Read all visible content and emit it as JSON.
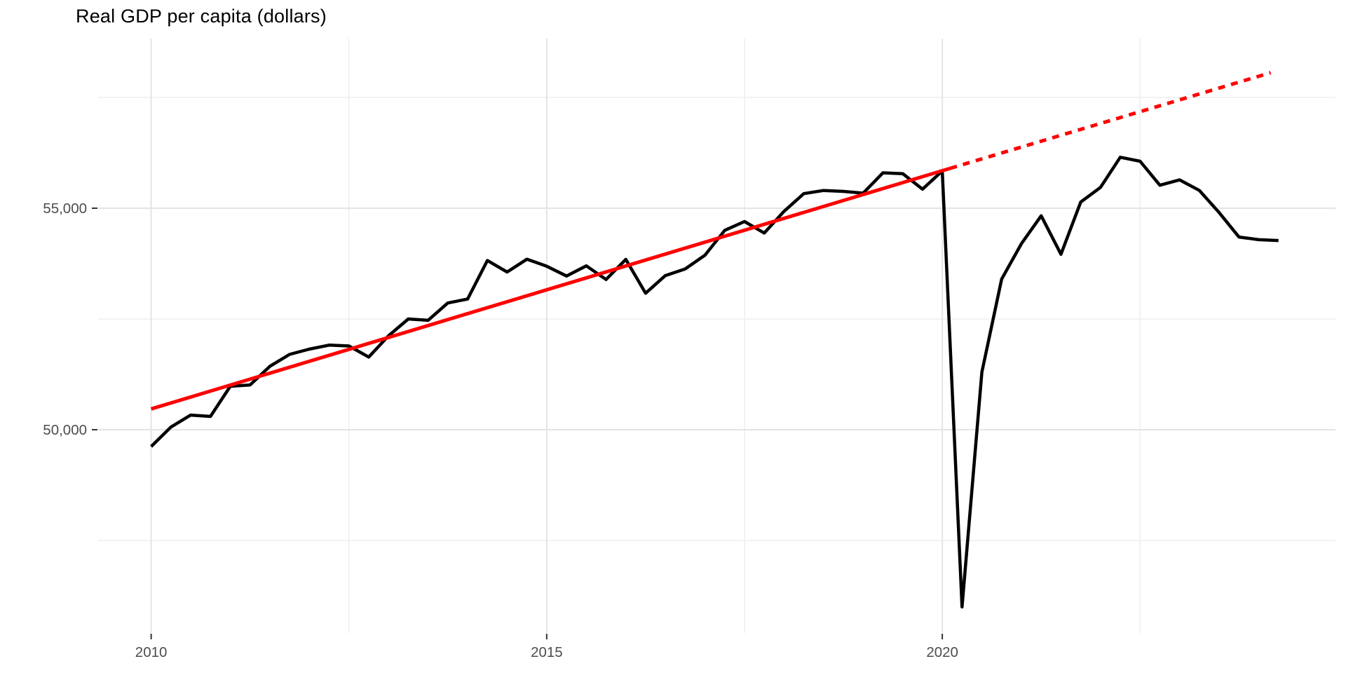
{
  "chart_data": {
    "type": "line",
    "title": "Real GDP per capita (dollars)",
    "xlabel": "",
    "ylabel": "",
    "grid": "on",
    "legend": "none",
    "x_domain": [
      2009.33,
      2024.97
    ],
    "y_domain": [
      45410,
      58830
    ],
    "x_ticks": [
      {
        "value": 2010,
        "label": "2010"
      },
      {
        "value": 2015,
        "label": "2015"
      },
      {
        "value": 2020,
        "label": "2020"
      }
    ],
    "x_minor": [
      2012.5,
      2017.5,
      2022.5
    ],
    "y_ticks": [
      {
        "value": 50000,
        "label": "50,000"
      },
      {
        "value": 55000,
        "label": "55,000"
      }
    ],
    "y_minor": [
      47500,
      52500,
      57500
    ],
    "series": [
      {
        "name": "real-gdp-per-capita-actual",
        "style": "solid",
        "color": "#000000",
        "width": 4.5,
        "points": [
          [
            2010.0,
            49620
          ],
          [
            2010.25,
            50060
          ],
          [
            2010.5,
            50330
          ],
          [
            2010.75,
            50300
          ],
          [
            2011.0,
            50980
          ],
          [
            2011.25,
            51010
          ],
          [
            2011.5,
            51430
          ],
          [
            2011.75,
            51700
          ],
          [
            2012.0,
            51820
          ],
          [
            2012.25,
            51910
          ],
          [
            2012.5,
            51890
          ],
          [
            2012.75,
            51640
          ],
          [
            2013.0,
            52120
          ],
          [
            2013.25,
            52500
          ],
          [
            2013.5,
            52470
          ],
          [
            2013.75,
            52860
          ],
          [
            2014.0,
            52950
          ],
          [
            2014.25,
            53820
          ],
          [
            2014.5,
            53560
          ],
          [
            2014.75,
            53850
          ],
          [
            2015.0,
            53690
          ],
          [
            2015.25,
            53470
          ],
          [
            2015.5,
            53700
          ],
          [
            2015.75,
            53390
          ],
          [
            2016.0,
            53845
          ],
          [
            2016.25,
            53080
          ],
          [
            2016.5,
            53480
          ],
          [
            2016.75,
            53630
          ],
          [
            2017.0,
            53940
          ],
          [
            2017.25,
            54500
          ],
          [
            2017.5,
            54700
          ],
          [
            2017.75,
            54440
          ],
          [
            2018.0,
            54930
          ],
          [
            2018.25,
            55330
          ],
          [
            2018.5,
            55400
          ],
          [
            2018.75,
            55380
          ],
          [
            2019.0,
            55340
          ],
          [
            2019.25,
            55800
          ],
          [
            2019.5,
            55780
          ],
          [
            2019.75,
            55430
          ],
          [
            2020.0,
            55840
          ],
          [
            2020.25,
            46000
          ],
          [
            2020.5,
            51300
          ],
          [
            2020.75,
            53400
          ],
          [
            2021.0,
            54200
          ],
          [
            2021.25,
            54830
          ],
          [
            2021.5,
            53960
          ],
          [
            2021.75,
            55140
          ],
          [
            2022.0,
            55470
          ],
          [
            2022.25,
            56150
          ],
          [
            2022.5,
            56060
          ],
          [
            2022.75,
            55520
          ],
          [
            2023.0,
            55640
          ],
          [
            2023.25,
            55400
          ],
          [
            2023.5,
            54900
          ],
          [
            2023.75,
            54350
          ],
          [
            2024.0,
            54290
          ],
          [
            2024.25,
            54270
          ]
        ]
      },
      {
        "name": "pre-pandemic-trend",
        "style": "solid",
        "color": "#FF0000",
        "width": 5,
        "points": [
          [
            2010.0,
            50470
          ],
          [
            2020.1,
            55900
          ]
        ]
      },
      {
        "name": "trend-projection",
        "style": "dashed",
        "color": "#FF0000",
        "width": 5,
        "points": [
          [
            2020.1,
            55900
          ],
          [
            2024.15,
            58060
          ]
        ]
      }
    ],
    "colors": {
      "background": "#FFFFFF",
      "grid_major": "#E4E4E4",
      "grid_minor": "#EFEFEF",
      "axis_text": "#4D4D4D",
      "tick_mark": "#333333",
      "actual_line": "#000000",
      "trend_line": "#FF0000"
    }
  }
}
